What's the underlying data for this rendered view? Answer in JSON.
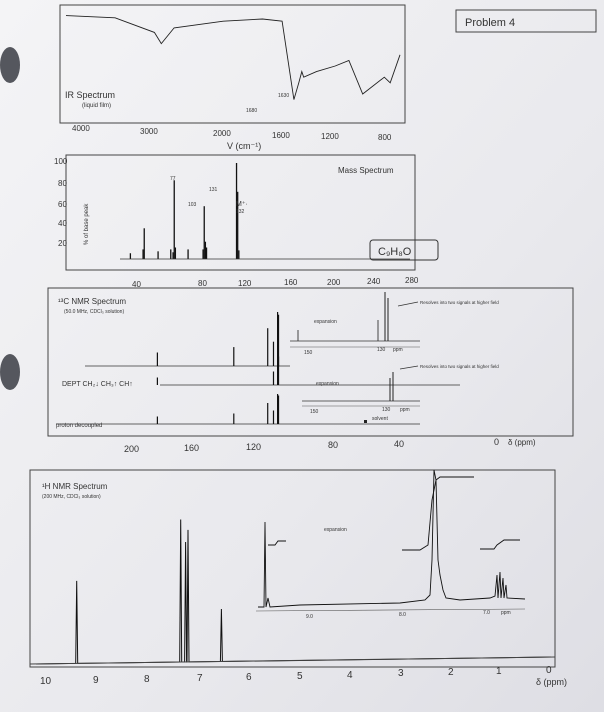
{
  "problem_label": "Problem 4",
  "ir": {
    "title": "IR Spectrum",
    "subtitle": "(liquid film)",
    "x_ticks": [
      "4000",
      "3000",
      "2000",
      "1600",
      "1200",
      "800"
    ],
    "x_label": "V (cm⁻¹)",
    "peak_labels": [
      "1680",
      "1630"
    ]
  },
  "mass": {
    "title": "Mass Spectrum",
    "y_label": "% of base peak",
    "y_ticks": [
      "100",
      "80",
      "60",
      "40",
      "20"
    ],
    "x_ticks": [
      "40",
      "80",
      "120",
      "160",
      "200",
      "240",
      "280"
    ],
    "peak_labels": [
      "77",
      "131",
      "103",
      "M⁺·",
      "132"
    ],
    "formula": "C₉H₈O"
  },
  "c13": {
    "title": "¹³C NMR Spectrum",
    "subtitle": "(50.0 MHz, CDCl₃ solution)",
    "dept_label": "DEPT  CH₂↓  CH₃↑  CH↑",
    "decoupled_label": "proton decoupled",
    "expansion_label": "expansion",
    "expansion_ticks": [
      "150",
      "130",
      "ppm"
    ],
    "resolves_note": "Resolves into two signals at higher field",
    "solvent_label": "solvent",
    "x_ticks": [
      "200",
      "160",
      "120",
      "80",
      "40",
      "0"
    ],
    "x_unit": "δ (ppm)"
  },
  "h1": {
    "title": "¹H NMR Spectrum",
    "subtitle": "(200 MHz, CDCl₃ solution)",
    "expansion_label": "expansion",
    "expansion_ticks": [
      "9.0",
      "8.0",
      "7.0",
      "ppm"
    ],
    "x_ticks": [
      "10",
      "9",
      "8",
      "7",
      "6",
      "5",
      "4",
      "3",
      "2",
      "1",
      "0"
    ],
    "x_unit": "δ (ppm)"
  },
  "chart_data": [
    {
      "type": "line",
      "title": "IR Spectrum",
      "xlabel": "V (cm⁻¹)",
      "xlim": [
        4000,
        600
      ],
      "x": [
        4000,
        3500,
        3100,
        3030,
        2900,
        2400,
        2000,
        1800,
        1680,
        1630,
        1600,
        1580,
        1450,
        1260,
        1120,
        980,
        760,
        700,
        600
      ],
      "values": [
        95,
        93,
        80,
        70,
        84,
        90,
        92,
        90,
        20,
        35,
        45,
        40,
        45,
        50,
        55,
        25,
        40,
        35,
        60
      ]
    },
    {
      "type": "bar",
      "title": "Mass Spectrum",
      "ylabel": "% of base peak",
      "ylim": [
        0,
        100
      ],
      "xlim": [
        0,
        290
      ],
      "x": [
        39,
        50,
        51,
        63,
        74,
        76,
        77,
        78,
        89,
        102,
        103,
        104,
        105,
        131,
        132,
        133
      ],
      "values": [
        6,
        10,
        32,
        8,
        10,
        7,
        82,
        12,
        10,
        10,
        55,
        18,
        12,
        100,
        70,
        9
      ],
      "series": [
        {
          "name": "C₉H₈O",
          "values": [
            6,
            10,
            32,
            8,
            10,
            7,
            82,
            12,
            10,
            10,
            55,
            18,
            12,
            100,
            70,
            9
          ]
        }
      ]
    },
    {
      "type": "bar",
      "title": "¹³C NMR Spectrum",
      "xlabel": "δ (ppm)",
      "xlim": [
        220,
        0
      ],
      "x": [
        193.5,
        152.5,
        134.3,
        131.2,
        129.0,
        128.5
      ],
      "values": [
        25,
        35,
        70,
        45,
        100,
        95
      ]
    },
    {
      "type": "line",
      "title": "¹H NMR Spectrum",
      "xlabel": "δ (ppm)",
      "xlim": [
        10.5,
        0
      ],
      "x": [
        9.67,
        7.55,
        7.45,
        7.4,
        6.72
      ],
      "values": [
        55,
        95,
        80,
        88,
        35
      ]
    }
  ]
}
